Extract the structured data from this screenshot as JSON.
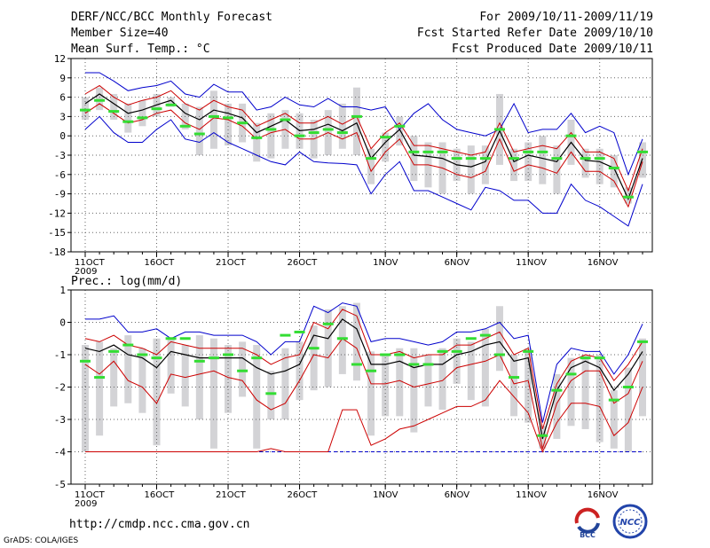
{
  "header": {
    "title": "DERF/NCC/BCC Monthly Forecast",
    "member_size": "Member Size=40",
    "variable_top": "Mean Surf. Temp.: °C",
    "for_range": "For 2009/10/11-2009/11/19",
    "fcst_started": "Fcst Started Refer Date 2009/10/10",
    "fcst_produced": "Fcst Produced Date 2009/10/11"
  },
  "footer": {
    "url": "http://cmdp.ncc.cma.gov.cn",
    "grads": "GrADS: COLA/IGES",
    "logo_left_text": "BCC",
    "logo_right_text": "NCC"
  },
  "colors": {
    "ensemble_max_min": "#0000cc",
    "ensemble_spread": "#cc0000",
    "ensemble_mean": "#000000",
    "box": "#d3d3d6",
    "climatology": "#33dd33",
    "grid": "#666666"
  },
  "chart_data": [
    {
      "type": "line",
      "title": "Mean Surf. Temp.: °C",
      "x_tick_labels": [
        "11OCT\n2009",
        "16OCT",
        "21OCT",
        "26OCT",
        "1NOV",
        "6NOV",
        "11NOV",
        "16NOV"
      ],
      "ylim": [
        -18,
        12
      ],
      "yticks": [
        -18,
        -15,
        -12,
        -9,
        -6,
        -3,
        0,
        3,
        6,
        9,
        12
      ],
      "series": [
        {
          "name": "max",
          "values": [
            9.8,
            9.8,
            8.5,
            7.0,
            7.5,
            7.8,
            8.5,
            6.5,
            6.0,
            8.0,
            6.8,
            6.8,
            4.0,
            4.5,
            6.0,
            4.8,
            4.5,
            5.8,
            4.5,
            4.5,
            4.0,
            4.5,
            1.0,
            3.5,
            5.0,
            2.5,
            1.0,
            0.5,
            0.0,
            1.0,
            5.0,
            0.5,
            1.0,
            1.0,
            3.5,
            0.5,
            1.5,
            0.5,
            -6.0,
            -0.5
          ]
        },
        {
          "name": "upper",
          "values": [
            6.5,
            7.8,
            6.0,
            4.8,
            5.5,
            6.0,
            7.0,
            5.0,
            4.0,
            5.5,
            4.5,
            4.0,
            1.5,
            2.5,
            3.5,
            2.0,
            2.0,
            3.0,
            1.8,
            3.0,
            -2.0,
            0.5,
            2.0,
            -1.5,
            -1.5,
            -2.0,
            -2.5,
            -3.0,
            -2.5,
            2.0,
            -2.5,
            -2.0,
            -1.5,
            -2.0,
            0.5,
            -2.5,
            -2.5,
            -3.5,
            -8.5,
            -2.0
          ]
        },
        {
          "name": "mean",
          "values": [
            5.0,
            6.5,
            5.0,
            3.5,
            4.0,
            4.8,
            5.5,
            3.5,
            2.5,
            4.0,
            3.5,
            2.8,
            0.5,
            1.5,
            2.5,
            0.8,
            1.0,
            1.8,
            0.8,
            2.0,
            -3.5,
            -1.0,
            1.0,
            -3.0,
            -3.2,
            -3.5,
            -4.5,
            -4.8,
            -4.0,
            0.8,
            -4.0,
            -3.0,
            -3.5,
            -4.0,
            -1.0,
            -3.8,
            -4.0,
            -5.0,
            -9.8,
            -3.5
          ]
        },
        {
          "name": "lower",
          "values": [
            3.5,
            5.0,
            3.5,
            2.0,
            2.5,
            3.5,
            4.0,
            2.0,
            1.0,
            2.8,
            2.5,
            1.5,
            -0.5,
            0.5,
            1.0,
            -0.5,
            -0.5,
            0.5,
            -0.5,
            0.5,
            -5.5,
            -2.5,
            -0.5,
            -4.5,
            -4.5,
            -5.0,
            -6.0,
            -6.5,
            -5.5,
            -0.5,
            -5.5,
            -4.5,
            -5.0,
            -5.8,
            -2.5,
            -5.5,
            -5.5,
            -7.0,
            -11.0,
            -4.0
          ]
        },
        {
          "name": "min",
          "values": [
            1.0,
            3.0,
            0.5,
            -1.0,
            -1.0,
            1.0,
            2.5,
            -0.5,
            -1.0,
            0.5,
            -1.0,
            -2.0,
            -3.0,
            -4.0,
            -4.5,
            -2.5,
            -4.0,
            -4.2,
            -4.3,
            -4.5,
            -9.0,
            -6.0,
            -4.0,
            -8.5,
            -8.5,
            -9.5,
            -10.5,
            -11.5,
            -8.0,
            -8.5,
            -10.0,
            -10.0,
            -12.0,
            -12.0,
            -7.5,
            -10.0,
            -11.0,
            -12.5,
            -14.0,
            -7.5
          ]
        },
        {
          "name": "box_top",
          "values": [
            6.0,
            7.5,
            6.5,
            5.0,
            5.5,
            6.5,
            6.0,
            5.0,
            4.5,
            7.0,
            5.0,
            5.0,
            2.0,
            3.5,
            4.0,
            3.5,
            2.5,
            4.0,
            5.0,
            7.5,
            -2.0,
            0.5,
            3.0,
            0.0,
            -1.0,
            -1.0,
            -2.0,
            -1.5,
            -1.5,
            6.5,
            -2.0,
            -1.0,
            0.0,
            -1.5,
            2.5,
            -2.0,
            -2.0,
            -3.0,
            -8.0,
            -1.0
          ]
        },
        {
          "name": "box_bottom",
          "values": [
            2.5,
            4.0,
            2.5,
            0.5,
            1.5,
            3.0,
            4.5,
            1.0,
            -3.0,
            -2.0,
            -1.5,
            -1.0,
            -4.0,
            -3.5,
            -2.0,
            -2.0,
            -3.5,
            -3.0,
            -2.0,
            -3.0,
            -7.5,
            -4.0,
            -1.5,
            -7.0,
            -8.0,
            -9.0,
            -7.0,
            -9.0,
            -7.5,
            -4.5,
            -7.0,
            -7.0,
            -7.5,
            -9.0,
            -4.5,
            -6.5,
            -7.5,
            -8.0,
            -10.5,
            -6.5
          ]
        },
        {
          "name": "climatology",
          "values": [
            4.0,
            5.5,
            3.8,
            2.2,
            2.8,
            4.2,
            4.8,
            1.5,
            0.3,
            3.0,
            2.8,
            2.0,
            -0.3,
            1.0,
            2.5,
            0.0,
            0.5,
            1.0,
            0.5,
            3.0,
            -3.5,
            -0.2,
            1.5,
            -2.5,
            -2.5,
            -2.5,
            -3.5,
            -3.5,
            -3.5,
            1.0,
            -3.5,
            -2.5,
            -2.5,
            -3.5,
            0.0,
            -3.5,
            -3.5,
            -5.0,
            -9.5,
            -2.5
          ]
        }
      ]
    },
    {
      "type": "line",
      "title": "Prec.: log(mm/d)",
      "x_tick_labels": [
        "11OCT\n2009",
        "16OCT",
        "21OCT",
        "26OCT",
        "1NOV",
        "6NOV",
        "11NOV",
        "16NOV"
      ],
      "ylim": [
        -5,
        1
      ],
      "yticks": [
        -5,
        -4,
        -3,
        -2,
        -1,
        0,
        1
      ],
      "series": [
        {
          "name": "max",
          "values": [
            0.1,
            0.1,
            0.2,
            -0.3,
            -0.3,
            -0.2,
            -0.5,
            -0.3,
            -0.3,
            -0.4,
            -0.4,
            -0.4,
            -0.6,
            -1.0,
            -0.6,
            -0.6,
            0.5,
            0.3,
            0.6,
            0.5,
            -0.6,
            -0.5,
            -0.5,
            -0.6,
            -0.7,
            -0.6,
            -0.3,
            -0.3,
            -0.2,
            0.0,
            -0.5,
            -0.4,
            -3.1,
            -1.3,
            -0.8,
            -0.9,
            -0.9,
            -1.6,
            -1.0,
            -0.05
          ]
        },
        {
          "name": "upper",
          "values": [
            -0.5,
            -0.6,
            -0.4,
            -0.7,
            -0.8,
            -1.0,
            -0.6,
            -0.7,
            -0.8,
            -0.8,
            -0.8,
            -0.8,
            -1.0,
            -1.3,
            -1.1,
            -1.0,
            0.0,
            -0.2,
            0.4,
            0.2,
            -1.0,
            -1.0,
            -0.9,
            -1.1,
            -1.0,
            -1.0,
            -0.7,
            -0.7,
            -0.5,
            -0.3,
            -1.0,
            -0.8,
            -3.3,
            -1.9,
            -1.2,
            -1.0,
            -1.1,
            -1.8,
            -1.3,
            -0.6
          ]
        },
        {
          "name": "mean",
          "values": [
            -0.8,
            -0.9,
            -0.7,
            -1.0,
            -1.1,
            -1.4,
            -0.9,
            -1.0,
            -1.1,
            -1.1,
            -1.1,
            -1.1,
            -1.4,
            -1.6,
            -1.5,
            -1.3,
            -0.4,
            -0.5,
            0.1,
            -0.2,
            -1.3,
            -1.3,
            -1.2,
            -1.4,
            -1.3,
            -1.3,
            -1.0,
            -0.9,
            -0.7,
            -0.6,
            -1.2,
            -1.1,
            -3.6,
            -2.1,
            -1.4,
            -1.2,
            -1.4,
            -2.1,
            -1.6,
            -0.9
          ]
        },
        {
          "name": "lower",
          "values": [
            -1.3,
            -1.6,
            -1.2,
            -1.8,
            -2.0,
            -2.5,
            -1.6,
            -1.7,
            -1.6,
            -1.5,
            -1.7,
            -1.8,
            -2.4,
            -2.7,
            -2.5,
            -1.8,
            -1.0,
            -1.1,
            -0.5,
            -0.8,
            -1.9,
            -1.9,
            -1.8,
            -2.0,
            -1.9,
            -1.8,
            -1.4,
            -1.3,
            -1.2,
            -1.0,
            -1.9,
            -1.8,
            -3.9,
            -2.5,
            -1.8,
            -1.5,
            -1.5,
            -2.5,
            -2.2,
            -1.2
          ]
        },
        {
          "name": "red_bottom",
          "values": [
            -4.0,
            -4.0,
            -4.0,
            -4.0,
            -4.0,
            -4.0,
            -4.0,
            -4.0,
            -4.0,
            -4.0,
            -4.0,
            -4.0,
            -4.0,
            -3.9,
            -4.0,
            -4.0,
            -4.0,
            -4.0,
            -2.7,
            -2.7,
            -3.8,
            -3.6,
            -3.3,
            -3.2,
            -3.0,
            -2.8,
            -2.6,
            -2.6,
            -2.4,
            -1.8,
            -2.3,
            -2.8,
            -4.0,
            -3.1,
            -2.5,
            -2.5,
            -2.6,
            -3.5,
            -3.1,
            -2.0
          ]
        },
        {
          "name": "min",
          "values": [
            -4.0,
            -4.0,
            -4.0,
            -4.0,
            -4.0,
            -4.0,
            -4.0,
            -4.0,
            -4.0,
            -4.0,
            -4.0,
            -4.0,
            -4.0,
            -4.0,
            -4.0,
            -4.0,
            -4.0,
            -4.0,
            -4.0,
            -4.0,
            -4.0,
            -4.0,
            -4.0,
            -4.0,
            -4.0,
            -4.0,
            -4.0,
            -4.0,
            -4.0,
            -4.0,
            -4.0,
            -4.0,
            -4.0,
            -4.0,
            -4.0,
            -4.0,
            -4.0,
            -4.0,
            -4.0,
            -4.0
          ]
        },
        {
          "name": "box_top",
          "values": [
            -0.7,
            -0.6,
            -0.8,
            -0.4,
            -0.8,
            -0.5,
            -0.5,
            -0.7,
            -0.4,
            -0.5,
            -0.7,
            -0.6,
            -0.7,
            -1.5,
            -0.8,
            -0.6,
            -0.1,
            0.4,
            0.5,
            0.6,
            -0.9,
            -1.0,
            -0.8,
            -0.8,
            -1.0,
            -0.8,
            -0.5,
            -0.6,
            -0.2,
            0.5,
            -1.0,
            -0.8,
            -3.2,
            -1.6,
            -1.1,
            -1.0,
            -1.0,
            -2.1,
            -1.4,
            -0.5
          ]
        },
        {
          "name": "box_bottom",
          "values": [
            -4.0,
            -3.5,
            -2.6,
            -2.5,
            -2.8,
            -3.8,
            -2.2,
            -2.6,
            -3.0,
            -3.9,
            -2.8,
            -2.3,
            -3.9,
            -3.0,
            -3.0,
            -2.4,
            -2.1,
            -2.0,
            -1.6,
            -1.8,
            -3.5,
            -2.9,
            -2.9,
            -3.4,
            -2.6,
            -2.7,
            -1.9,
            -2.4,
            -2.6,
            -1.5,
            -2.9,
            -3.1,
            -3.9,
            -3.6,
            -3.2,
            -3.3,
            -3.7,
            -3.9,
            -4.0,
            -2.9
          ]
        },
        {
          "name": "climatology",
          "values": [
            -1.2,
            -1.7,
            -0.9,
            -0.7,
            -1.0,
            -1.1,
            -0.5,
            -0.5,
            -1.2,
            -1.1,
            -1.0,
            -1.5,
            -1.1,
            -2.2,
            -0.4,
            -0.3,
            -0.8,
            -0.05,
            -0.5,
            -1.3,
            -1.5,
            -1.0,
            -1.0,
            -1.3,
            -1.3,
            -0.9,
            -0.9,
            -0.5,
            -0.4,
            -1.0,
            -1.7,
            -0.9,
            -3.5,
            -2.1,
            -1.6,
            -1.1,
            -1.1,
            -2.4,
            -2.0,
            -0.6
          ]
        }
      ]
    }
  ]
}
